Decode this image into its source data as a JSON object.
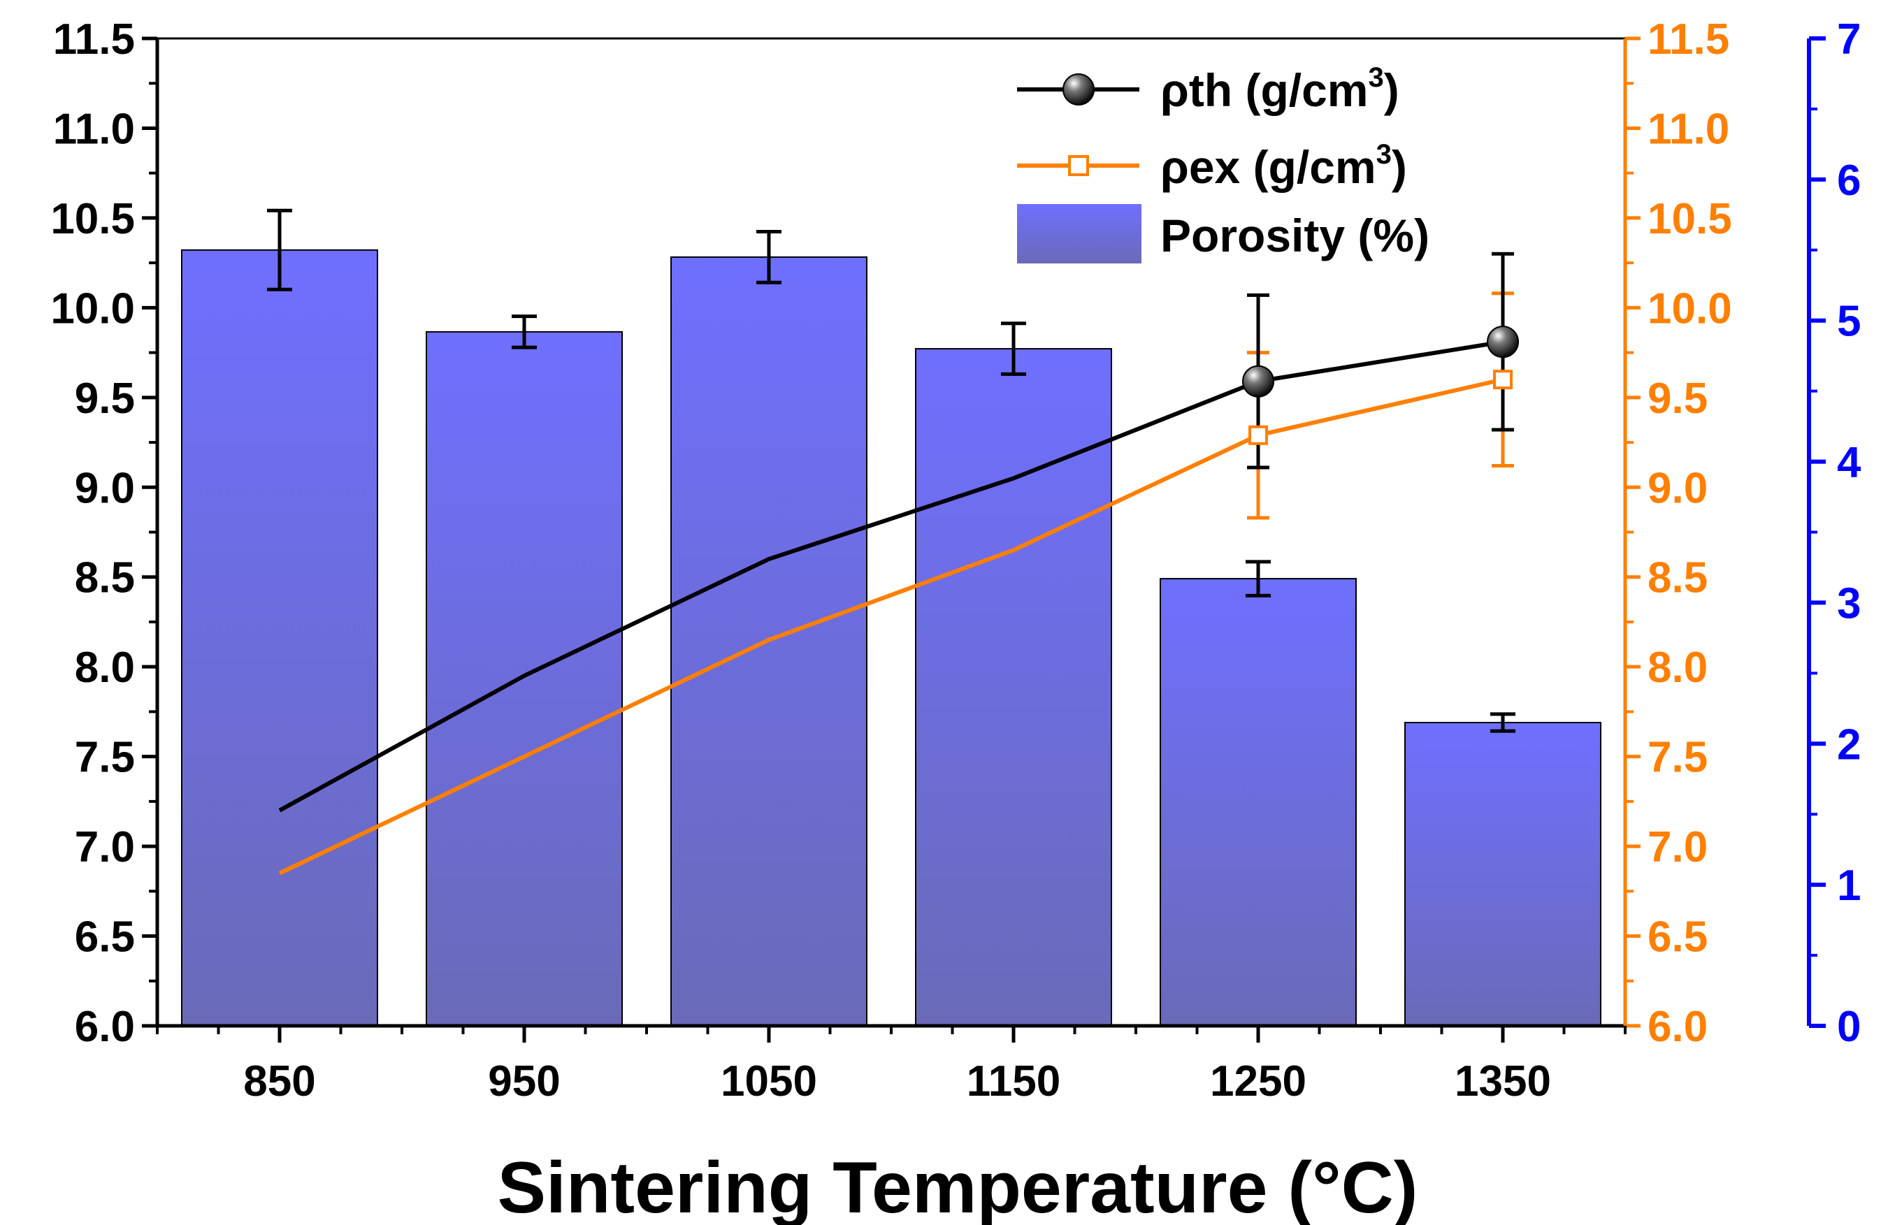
{
  "chart_data": {
    "type": "bar+line",
    "title": "",
    "xlabel": "Sintering Temperature (°C)",
    "categories": [
      "850",
      "950",
      "1050",
      "1150",
      "1250",
      "1350"
    ],
    "x": [
      850,
      950,
      1050,
      1150,
      1250,
      1350
    ],
    "xlim": [
      800,
      1400
    ],
    "y_left": {
      "ylim": [
        6.0,
        11.5
      ],
      "ticks": [
        "6.0",
        "6.5",
        "7.0",
        "7.5",
        "8.0",
        "8.5",
        "9.0",
        "9.5",
        "10.0",
        "10.5",
        "11.0",
        "11.5"
      ],
      "color": "#000000"
    },
    "y_right_orange": {
      "ylim": [
        6.0,
        11.5
      ],
      "ticks": [
        "6.0",
        "6.5",
        "7.0",
        "7.5",
        "8.0",
        "8.5",
        "9.0",
        "9.5",
        "10.0",
        "10.5",
        "11.0",
        "11.5"
      ],
      "color": "#ff7f00"
    },
    "y_right_blue": {
      "ylim": [
        0,
        7
      ],
      "ticks": [
        "0",
        "1",
        "2",
        "3",
        "4",
        "5",
        "6",
        "7"
      ],
      "color": "#0000ff"
    },
    "series": [
      {
        "name": "ρth (g/cm3)",
        "kind": "line",
        "axis": "left",
        "color": "#000000",
        "values": [
          7.2,
          7.95,
          8.6,
          9.05,
          9.59,
          9.81
        ],
        "error": [
          null,
          null,
          null,
          null,
          0.48,
          0.49
        ]
      },
      {
        "name": "ρex (g/cm3)",
        "kind": "line",
        "axis": "right_orange",
        "color": "#ff7f00",
        "values": [
          6.85,
          7.5,
          8.15,
          8.65,
          9.29,
          9.6
        ],
        "error": [
          null,
          null,
          null,
          null,
          0.46,
          0.48
        ]
      },
      {
        "name": "Porosity (%)",
        "kind": "bar",
        "axis": "right_blue",
        "color": "#6b6bff",
        "values": [
          5.5,
          4.92,
          5.45,
          4.8,
          3.17,
          2.15
        ],
        "error": [
          0.28,
          0.11,
          0.18,
          0.18,
          0.12,
          0.06
        ]
      }
    ],
    "legend": {
      "position": "top-right",
      "entries": [
        "ρth (g/cm",
        "ρex (g/cm",
        "Porosity (%)"
      ],
      "superscript": "3",
      "suffix": ")"
    }
  }
}
